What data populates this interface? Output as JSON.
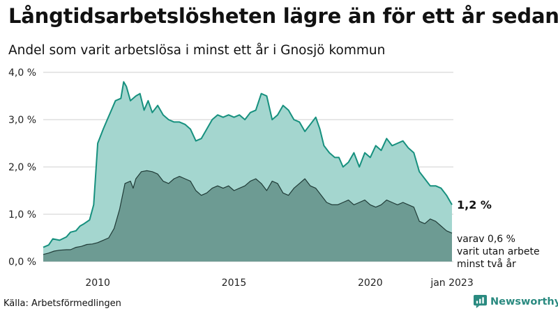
{
  "title": "Långtidsarbetslösheten lägre än för ett år sedan",
  "subtitle": "Andel som varit arbetslösa i minst ett år i Gnosjö kommun",
  "source": "Källa: Arbetsförmedlingen",
  "brand": {
    "name": "Newsworthy",
    "icon": "newsworthy-logo-icon"
  },
  "colors": {
    "total_fill": "#a4d6cf",
    "total_line": "#16907e",
    "sub_fill": "#6d9b93",
    "sub_line": "#1f3a36",
    "grid": "#cfcfcf"
  },
  "annotations": {
    "total_value": "1,2 %",
    "sub_line1": "varav 0,6 %",
    "sub_line2": "varit utan arbete",
    "sub_line3": "minst två år"
  },
  "chart_data": {
    "type": "area",
    "title": "Långtidsarbetslösheten lägre än för ett år sedan",
    "subtitle": "Andel som varit arbetslösa i minst ett år i Gnosjö kommun",
    "x_ticks": [
      {
        "x": 2010.0,
        "label": "2010"
      },
      {
        "x": 2015.0,
        "label": "2015"
      },
      {
        "x": 2020.0,
        "label": "2020"
      },
      {
        "x": 2023.0,
        "label": "jan 2023"
      }
    ],
    "y_ticks": [
      {
        "y": 0,
        "label": "0,0 %"
      },
      {
        "y": 1,
        "label": "1,0 %"
      },
      {
        "y": 2,
        "label": "2,0 %"
      },
      {
        "y": 3,
        "label": "3,0 %"
      },
      {
        "y": 4,
        "label": "4,0 %"
      }
    ],
    "xlim": [
      2008.0,
      2023.05
    ],
    "ylim": [
      0,
      4
    ],
    "grid": true,
    "series": [
      {
        "name": "Minst ett år",
        "points": [
          [
            2008.0,
            0.3
          ],
          [
            2008.2,
            0.35
          ],
          [
            2008.35,
            0.48
          ],
          [
            2008.6,
            0.45
          ],
          [
            2008.85,
            0.52
          ],
          [
            2009.0,
            0.62
          ],
          [
            2009.2,
            0.65
          ],
          [
            2009.35,
            0.75
          ],
          [
            2009.5,
            0.8
          ],
          [
            2009.7,
            0.88
          ],
          [
            2009.85,
            1.2
          ],
          [
            2010.0,
            2.5
          ],
          [
            2010.2,
            2.8
          ],
          [
            2010.35,
            3.0
          ],
          [
            2010.5,
            3.2
          ],
          [
            2010.65,
            3.4
          ],
          [
            2010.85,
            3.45
          ],
          [
            2010.95,
            3.8
          ],
          [
            2011.05,
            3.7
          ],
          [
            2011.2,
            3.4
          ],
          [
            2011.4,
            3.5
          ],
          [
            2011.55,
            3.55
          ],
          [
            2011.7,
            3.2
          ],
          [
            2011.85,
            3.4
          ],
          [
            2012.0,
            3.15
          ],
          [
            2012.2,
            3.3
          ],
          [
            2012.4,
            3.1
          ],
          [
            2012.6,
            3.0
          ],
          [
            2012.8,
            2.95
          ],
          [
            2013.0,
            2.95
          ],
          [
            2013.2,
            2.9
          ],
          [
            2013.4,
            2.8
          ],
          [
            2013.6,
            2.55
          ],
          [
            2013.8,
            2.6
          ],
          [
            2014.0,
            2.8
          ],
          [
            2014.2,
            3.0
          ],
          [
            2014.4,
            3.1
          ],
          [
            2014.6,
            3.05
          ],
          [
            2014.8,
            3.1
          ],
          [
            2015.0,
            3.05
          ],
          [
            2015.2,
            3.1
          ],
          [
            2015.4,
            3.0
          ],
          [
            2015.6,
            3.15
          ],
          [
            2015.8,
            3.2
          ],
          [
            2016.0,
            3.55
          ],
          [
            2016.2,
            3.5
          ],
          [
            2016.4,
            3.0
          ],
          [
            2016.6,
            3.1
          ],
          [
            2016.8,
            3.3
          ],
          [
            2017.0,
            3.2
          ],
          [
            2017.2,
            3.0
          ],
          [
            2017.4,
            2.95
          ],
          [
            2017.6,
            2.75
          ],
          [
            2017.8,
            2.9
          ],
          [
            2018.0,
            3.05
          ],
          [
            2018.15,
            2.8
          ],
          [
            2018.3,
            2.45
          ],
          [
            2018.5,
            2.3
          ],
          [
            2018.7,
            2.2
          ],
          [
            2018.85,
            2.2
          ],
          [
            2019.0,
            2.0
          ],
          [
            2019.2,
            2.1
          ],
          [
            2019.4,
            2.3
          ],
          [
            2019.6,
            2.0
          ],
          [
            2019.8,
            2.3
          ],
          [
            2020.0,
            2.2
          ],
          [
            2020.2,
            2.45
          ],
          [
            2020.4,
            2.35
          ],
          [
            2020.6,
            2.6
          ],
          [
            2020.8,
            2.45
          ],
          [
            2021.0,
            2.5
          ],
          [
            2021.2,
            2.55
          ],
          [
            2021.4,
            2.4
          ],
          [
            2021.6,
            2.3
          ],
          [
            2021.8,
            1.9
          ],
          [
            2022.0,
            1.75
          ],
          [
            2022.2,
            1.6
          ],
          [
            2022.4,
            1.6
          ],
          [
            2022.6,
            1.55
          ],
          [
            2022.8,
            1.4
          ],
          [
            2023.0,
            1.2
          ]
        ]
      },
      {
        "name": "varav minst två år",
        "points": [
          [
            2008.0,
            0.15
          ],
          [
            2008.2,
            0.18
          ],
          [
            2008.4,
            0.22
          ],
          [
            2008.6,
            0.24
          ],
          [
            2008.85,
            0.25
          ],
          [
            2009.0,
            0.25
          ],
          [
            2009.2,
            0.3
          ],
          [
            2009.4,
            0.32
          ],
          [
            2009.6,
            0.36
          ],
          [
            2009.8,
            0.37
          ],
          [
            2010.0,
            0.4
          ],
          [
            2010.2,
            0.45
          ],
          [
            2010.4,
            0.5
          ],
          [
            2010.6,
            0.7
          ],
          [
            2010.8,
            1.1
          ],
          [
            2011.0,
            1.65
          ],
          [
            2011.2,
            1.7
          ],
          [
            2011.3,
            1.55
          ],
          [
            2011.4,
            1.75
          ],
          [
            2011.6,
            1.9
          ],
          [
            2011.8,
            1.92
          ],
          [
            2012.0,
            1.9
          ],
          [
            2012.2,
            1.85
          ],
          [
            2012.4,
            1.7
          ],
          [
            2012.6,
            1.65
          ],
          [
            2012.8,
            1.75
          ],
          [
            2013.0,
            1.8
          ],
          [
            2013.2,
            1.75
          ],
          [
            2013.4,
            1.7
          ],
          [
            2013.6,
            1.5
          ],
          [
            2013.8,
            1.4
          ],
          [
            2014.0,
            1.45
          ],
          [
            2014.2,
            1.55
          ],
          [
            2014.4,
            1.6
          ],
          [
            2014.6,
            1.55
          ],
          [
            2014.8,
            1.6
          ],
          [
            2015.0,
            1.5
          ],
          [
            2015.2,
            1.55
          ],
          [
            2015.4,
            1.6
          ],
          [
            2015.6,
            1.7
          ],
          [
            2015.8,
            1.75
          ],
          [
            2016.0,
            1.65
          ],
          [
            2016.2,
            1.5
          ],
          [
            2016.4,
            1.7
          ],
          [
            2016.6,
            1.65
          ],
          [
            2016.8,
            1.45
          ],
          [
            2017.0,
            1.4
          ],
          [
            2017.2,
            1.55
          ],
          [
            2017.4,
            1.65
          ],
          [
            2017.6,
            1.75
          ],
          [
            2017.8,
            1.6
          ],
          [
            2018.0,
            1.55
          ],
          [
            2018.2,
            1.4
          ],
          [
            2018.4,
            1.25
          ],
          [
            2018.6,
            1.2
          ],
          [
            2018.8,
            1.2
          ],
          [
            2019.0,
            1.25
          ],
          [
            2019.2,
            1.3
          ],
          [
            2019.4,
            1.2
          ],
          [
            2019.6,
            1.25
          ],
          [
            2019.8,
            1.3
          ],
          [
            2020.0,
            1.2
          ],
          [
            2020.2,
            1.15
          ],
          [
            2020.4,
            1.2
          ],
          [
            2020.6,
            1.3
          ],
          [
            2020.8,
            1.25
          ],
          [
            2021.0,
            1.2
          ],
          [
            2021.2,
            1.25
          ],
          [
            2021.4,
            1.2
          ],
          [
            2021.6,
            1.15
          ],
          [
            2021.8,
            0.85
          ],
          [
            2022.0,
            0.8
          ],
          [
            2022.2,
            0.9
          ],
          [
            2022.4,
            0.85
          ],
          [
            2022.6,
            0.75
          ],
          [
            2022.8,
            0.65
          ],
          [
            2023.0,
            0.6
          ]
        ]
      }
    ]
  }
}
